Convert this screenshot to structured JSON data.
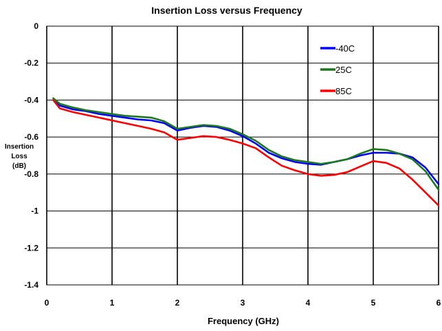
{
  "chart_data": {
    "type": "line",
    "title": "Insertion Loss versus Frequency",
    "xlabel": "Frequency (GHz)",
    "ylabel_lines": [
      "Insertion",
      "Loss",
      "(dB)"
    ],
    "xlim": [
      0,
      6
    ],
    "ylim": [
      -1.4,
      0
    ],
    "x_ticks": [
      0,
      1,
      2,
      3,
      4,
      5,
      6
    ],
    "x_tick_labels": [
      "0",
      "1",
      "2",
      "3",
      "4",
      "5",
      "6"
    ],
    "y_ticks": [
      0,
      -0.2,
      -0.4,
      -0.6,
      -0.8,
      -1,
      -1.2,
      -1.4
    ],
    "y_tick_labels": [
      "0",
      "-0.2",
      "-0.4",
      "-0.6",
      "-0.8",
      "-1",
      "-1.2",
      "-1.4"
    ],
    "grid": true,
    "legend_position": "top-right",
    "series": [
      {
        "name": "-40C",
        "color": "#0000ff",
        "x": [
          0.1,
          0.2,
          0.4,
          0.6,
          0.8,
          1.0,
          1.2,
          1.4,
          1.6,
          1.8,
          2.0,
          2.2,
          2.4,
          2.6,
          2.8,
          3.0,
          3.2,
          3.4,
          3.6,
          3.8,
          4.0,
          4.2,
          4.4,
          4.6,
          4.8,
          5.0,
          5.2,
          5.4,
          5.6,
          5.8,
          6.0
        ],
        "y": [
          -0.4,
          -0.43,
          -0.45,
          -0.46,
          -0.475,
          -0.485,
          -0.495,
          -0.505,
          -0.51,
          -0.525,
          -0.565,
          -0.55,
          -0.54,
          -0.545,
          -0.565,
          -0.595,
          -0.635,
          -0.685,
          -0.715,
          -0.735,
          -0.745,
          -0.75,
          -0.735,
          -0.72,
          -0.7,
          -0.685,
          -0.685,
          -0.69,
          -0.71,
          -0.765,
          -0.855
        ]
      },
      {
        "name": "25C",
        "color": "#1a7a1a",
        "x": [
          0.1,
          0.2,
          0.4,
          0.6,
          0.8,
          1.0,
          1.2,
          1.4,
          1.6,
          1.8,
          2.0,
          2.2,
          2.4,
          2.6,
          2.8,
          3.0,
          3.2,
          3.4,
          3.6,
          3.8,
          4.0,
          4.2,
          4.4,
          4.6,
          4.8,
          5.0,
          5.2,
          5.4,
          5.6,
          5.8,
          6.0
        ],
        "y": [
          -0.39,
          -0.42,
          -0.44,
          -0.455,
          -0.465,
          -0.475,
          -0.485,
          -0.49,
          -0.495,
          -0.515,
          -0.555,
          -0.545,
          -0.535,
          -0.54,
          -0.555,
          -0.585,
          -0.62,
          -0.67,
          -0.705,
          -0.725,
          -0.735,
          -0.745,
          -0.735,
          -0.72,
          -0.69,
          -0.665,
          -0.67,
          -0.69,
          -0.72,
          -0.785,
          -0.885
        ]
      },
      {
        "name": "85C",
        "color": "#ff0000",
        "x": [
          0.1,
          0.2,
          0.4,
          0.6,
          0.8,
          1.0,
          1.2,
          1.4,
          1.6,
          1.8,
          2.0,
          2.2,
          2.4,
          2.6,
          2.8,
          3.0,
          3.2,
          3.4,
          3.6,
          3.8,
          4.0,
          4.2,
          4.4,
          4.6,
          4.8,
          5.0,
          5.2,
          5.4,
          5.6,
          5.8,
          6.0
        ],
        "y": [
          -0.4,
          -0.445,
          -0.465,
          -0.48,
          -0.495,
          -0.51,
          -0.525,
          -0.54,
          -0.555,
          -0.575,
          -0.615,
          -0.605,
          -0.595,
          -0.6,
          -0.615,
          -0.635,
          -0.66,
          -0.71,
          -0.755,
          -0.78,
          -0.8,
          -0.81,
          -0.805,
          -0.79,
          -0.76,
          -0.73,
          -0.74,
          -0.77,
          -0.83,
          -0.9,
          -0.97
        ]
      }
    ]
  }
}
